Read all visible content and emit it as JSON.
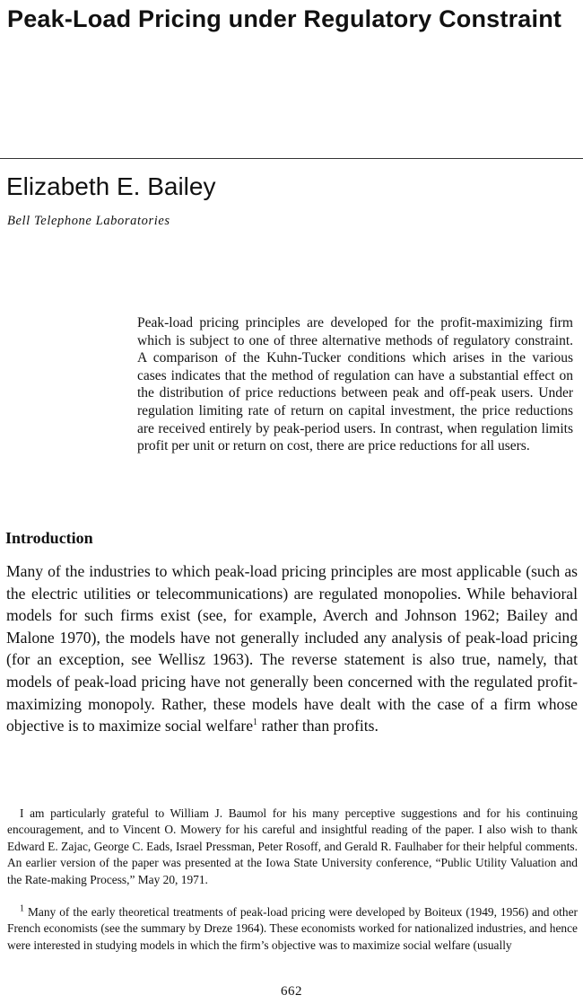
{
  "title": "Peak-Load Pricing under Regulatory Constraint",
  "author": "Elizabeth E. Bailey",
  "affiliation": "Bell Telephone Laboratories",
  "abstract": "Peak-load pricing principles are developed for the profit-maximizing firm which is subject to one of three alternative methods of regulatory constraint. A comparison of the Kuhn-Tucker conditions which arises in the various cases indicates that the method of regulation can have a substantial effect on the distribution of price reductions between peak and off-peak users. Under regulation limiting rate of return on capital investment, the price reductions are received entirely by peak-period users. In contrast, when regulation limits profit per unit or return on cost, there are price reductions for all users.",
  "section": {
    "heading": "Introduction",
    "paragraph": "Many of the industries to which peak-load pricing principles are most applicable (such as the electric utilities or telecommunications) are regulated monopolies. While behavioral models for such firms exist (see, for example, Averch and Johnson 1962; Bailey and Malone 1970), the models have not generally included any analysis of peak-load pricing (for an exception, see Wellisz 1963). The reverse statement is also true, namely, that models of peak-load pricing have not generally been concerned with the regulated profit-maximizing monopoly. Rather, these models have dealt with the case of a firm whose objective is to maximize social welfare",
    "footnote_ref": "1",
    "paragraph_end": " rather than profits."
  },
  "acknowledgment": "I am particularly grateful to William J. Baumol for his many perceptive suggestions and for his continuing encouragement, and to Vincent O. Mowery for his careful and insightful reading of the paper. I also wish to thank Edward E. Zajac, George C. Eads, Israel Pressman, Peter Rosoff, and Gerald R. Faulhaber for their helpful comments. An earlier version of the paper was presented at the Iowa State University conference, “Public Utility Valuation and the Rate-making Process,” May 20, 1971.",
  "footnote": {
    "marker": "1",
    "text": " Many of the early theoretical treatments of peak-load pricing were developed by Boiteux (1949, 1956) and other French economists (see the summary by Dreze 1964). These economists worked for nationalized industries, and hence were interested in studying models in which the firm’s objective was to maximize social welfare (usually"
  },
  "page_number": "662"
}
